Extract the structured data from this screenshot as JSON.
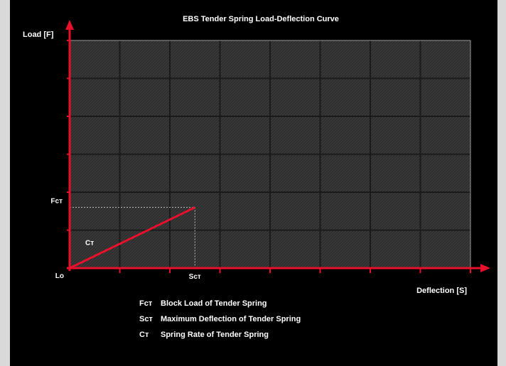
{
  "chart_data": {
    "type": "line",
    "title": "EBS Tender Spring Load-Deflection Curve",
    "ylabel": "Load [F]",
    "xlabel": "Deflection [S]",
    "grid": true,
    "x_ticks": [
      "Scᴛ"
    ],
    "y_ticks": [
      "Fcᴛ"
    ],
    "origin_label": "Lᴏ",
    "slope_label": "Cᴛ",
    "x_cols": 8,
    "y_rows": 6,
    "series": [
      {
        "points": [
          [
            0,
            0
          ],
          [
            2.5,
            1.6
          ]
        ]
      }
    ],
    "point": {
      "x": 2.5,
      "y": 1.6
    },
    "legend": [
      {
        "symbol": "Fcᴛ",
        "text": "Block Load of Tender Spring"
      },
      {
        "symbol": "Scᴛ",
        "text": "Maximum Deflection of Tender Spring"
      },
      {
        "symbol": "Cᴛ",
        "text": "Spring Rate of Tender Spring"
      }
    ],
    "colors": {
      "axis": "#e8102a",
      "curve": "#e8102a",
      "grid": "#1a1a1a",
      "plot_bg": "#3a3a3a",
      "dashed": "#bfbfbf"
    }
  }
}
